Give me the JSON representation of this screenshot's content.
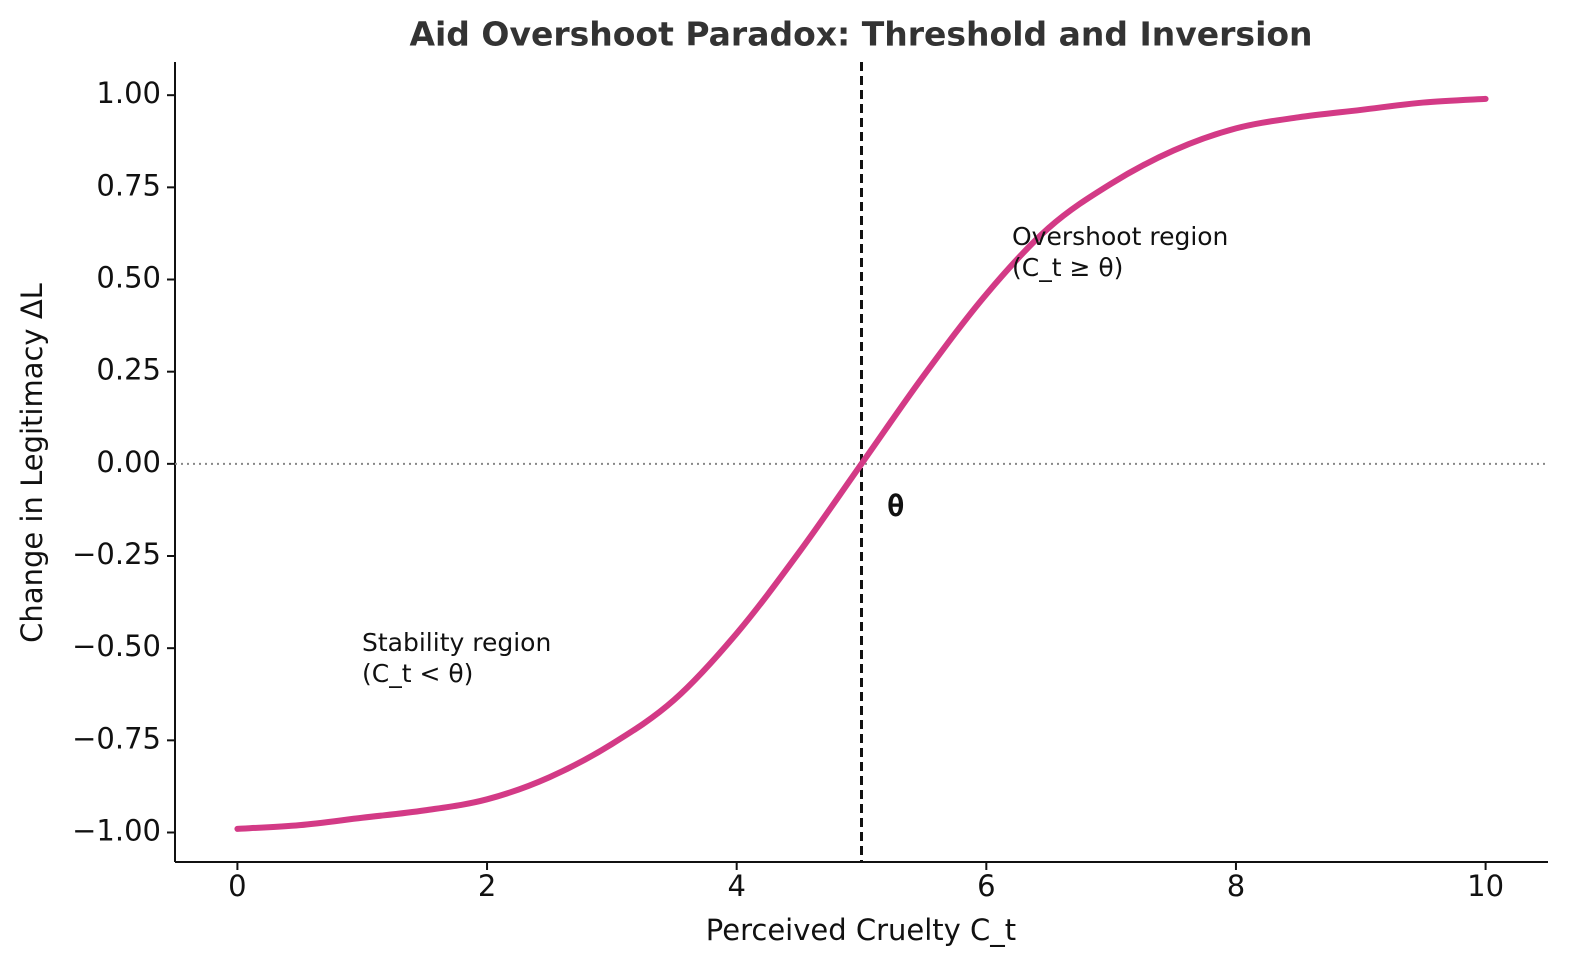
{
  "chart_data": {
    "type": "line",
    "title": "Aid Overshoot Paradox: Threshold and Inversion",
    "x_label": "Perceived Cruelty  C_t",
    "y_label": "Change in Legitimacy  ΔL",
    "x": [
      0,
      0.5,
      1,
      1.5,
      2,
      2.5,
      3,
      3.5,
      4,
      4.5,
      5,
      5.5,
      6,
      6.5,
      7,
      7.5,
      8,
      8.5,
      9,
      9.5,
      10
    ],
    "series": [
      {
        "color": "#d33a86",
        "values": [
          -0.99,
          -0.98,
          -0.96,
          -0.94,
          -0.91,
          -0.85,
          -0.76,
          -0.64,
          -0.46,
          -0.24,
          0,
          0.24,
          0.46,
          0.64,
          0.76,
          0.85,
          0.91,
          0.94,
          0.96,
          0.98,
          0.99
        ]
      }
    ],
    "threshold": 5,
    "threshold_label": "θ",
    "reference_y": 0,
    "annotations": [
      {
        "lines": [
          "Overshoot region",
          "(C_t ≥ θ)"
        ]
      },
      {
        "lines": [
          "Stability region",
          "(C_t < θ)"
        ]
      }
    ],
    "xlim": [
      -0.5,
      10.5
    ],
    "xticks": [
      0,
      2,
      4,
      6,
      8,
      10
    ],
    "ylim": [
      -1.08,
      1.09
    ],
    "yticks": [
      {
        "value": -1,
        "label": "−1.00"
      },
      {
        "value": -0.75,
        "label": "−0.75"
      },
      {
        "value": -0.5,
        "label": "−0.50"
      },
      {
        "value": -0.25,
        "label": "−0.25"
      },
      {
        "value": 0,
        "label": "0.00"
      },
      {
        "value": 0.25,
        "label": "0.25"
      },
      {
        "value": 0.5,
        "label": "0.50"
      },
      {
        "value": 0.75,
        "label": "0.75"
      },
      {
        "value": 1,
        "label": "1.00"
      }
    ],
    "grid": false
  }
}
